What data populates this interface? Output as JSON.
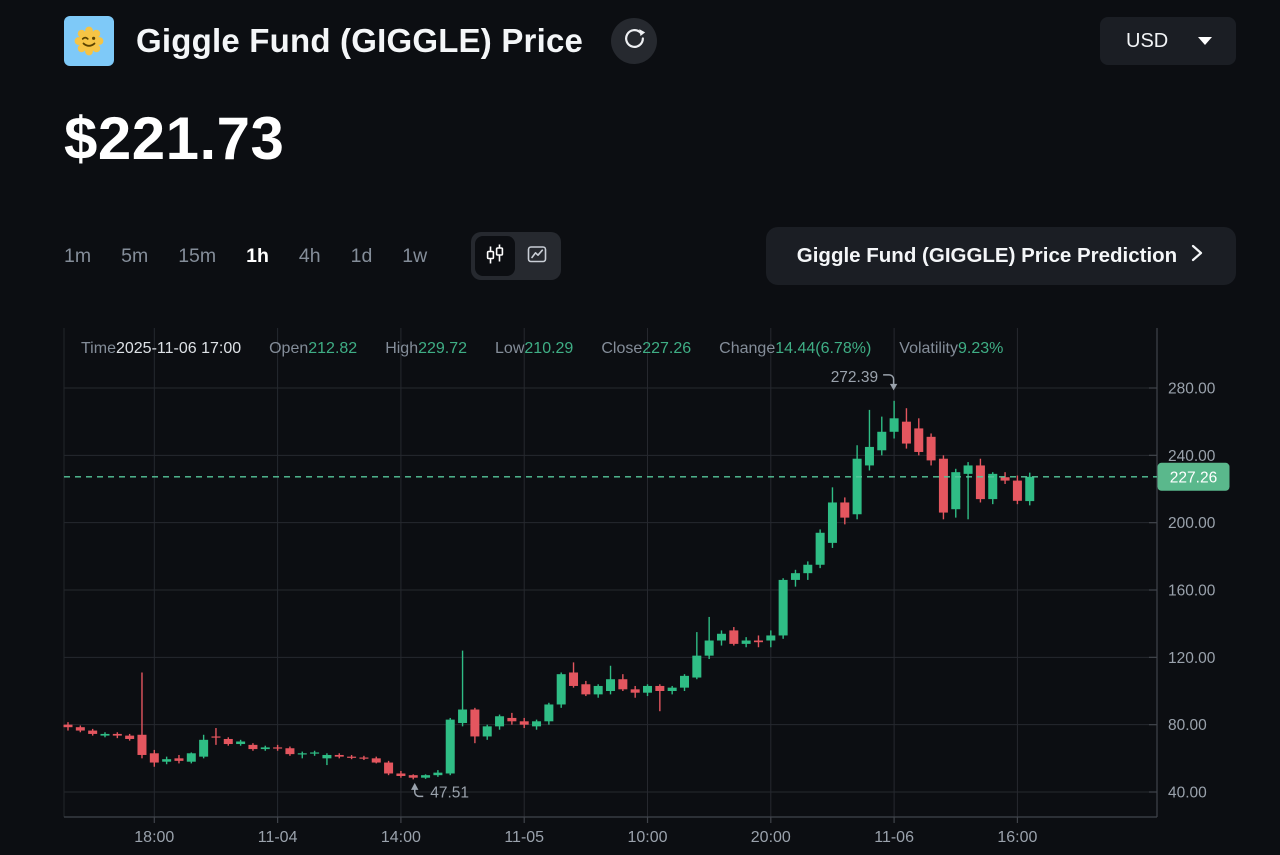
{
  "header": {
    "title": "Giggle Fund (GIGGLE) Price",
    "currency_selector": {
      "value": "USD"
    }
  },
  "icons": {
    "logo": "giggle-smiley-logo-icon",
    "refresh": "refresh-icon",
    "caret": "caret-down-icon",
    "candlestick": "candlestick-icon",
    "line_chart": "line-chart-icon",
    "chevron": "chevron-right-icon"
  },
  "price_display": "$221.73",
  "timeframes": {
    "options": [
      "1m",
      "5m",
      "15m",
      "1h",
      "4h",
      "1d",
      "1w"
    ],
    "active": "1h"
  },
  "chart_type_toggle": {
    "options": [
      "candlestick",
      "line"
    ],
    "active": "candlestick"
  },
  "prediction_button": {
    "label": "Giggle Fund (GIGGLE) Price Prediction"
  },
  "ohlc": {
    "time": {
      "label": "Time",
      "value": "2025-11-06 17:00"
    },
    "open": {
      "label": "Open",
      "value": "212.82"
    },
    "high": {
      "label": "High",
      "value": "229.72"
    },
    "low": {
      "label": "Low",
      "value": "210.29"
    },
    "close": {
      "label": "Close",
      "value": "227.26"
    },
    "change": {
      "label": "Change",
      "value": "14.44(6.78%)"
    },
    "volatility": {
      "label": "Volatility",
      "value": "9.23%"
    }
  },
  "chart_data": {
    "type": "candlestick",
    "interval": "1h",
    "unit": "USD",
    "title": "Giggle Fund (GIGGLE) 1h candles, 2025-11-03 11:00 to 2025-11-06 17:00",
    "ylim": [
      25.15,
      315.65
    ],
    "y_ticks": [
      280,
      240,
      200,
      160,
      120,
      80,
      40
    ],
    "y_tick_labels": [
      "280.00",
      "240.00",
      "200.00",
      "160.00",
      "120.00",
      "80.00",
      "40.00"
    ],
    "x_labels": [
      "18:00",
      "11-04",
      "14:00",
      "11-05",
      "10:00",
      "20:00",
      "11-06",
      "16:00"
    ],
    "x_tick_indices": [
      7,
      17,
      27,
      37,
      47,
      57,
      67,
      77
    ],
    "grid": true,
    "candles": [
      [
        80,
        81.5,
        76.5,
        78.5
      ],
      [
        78.5,
        79.5,
        75.5,
        76.5
      ],
      [
        76.5,
        77.5,
        73.5,
        74.5
      ],
      [
        73.5,
        75.5,
        72.5,
        74.5
      ],
      [
        74.5,
        75.5,
        72,
        73.5
      ],
      [
        73.5,
        74.5,
        70.5,
        71.5
      ],
      [
        74,
        111,
        60,
        62
      ],
      [
        63,
        65,
        55,
        57.5
      ],
      [
        58,
        61,
        56.5,
        59.5
      ],
      [
        60,
        62,
        57,
        58.5
      ],
      [
        58,
        63.5,
        57,
        63
      ],
      [
        61,
        74,
        60,
        71
      ],
      [
        73,
        78,
        68,
        72.5
      ],
      [
        71.5,
        72.5,
        67.5,
        68.5
      ],
      [
        68.5,
        71,
        67.5,
        70
      ],
      [
        68,
        69,
        64.5,
        65.5
      ],
      [
        65.5,
        67.5,
        64.5,
        66.5
      ],
      [
        66.5,
        68,
        64.5,
        66
      ],
      [
        66,
        67,
        61.5,
        62.5
      ],
      [
        62.5,
        64,
        60,
        63
      ],
      [
        63,
        64.5,
        61.5,
        63.5
      ],
      [
        60,
        63,
        56,
        62
      ],
      [
        62,
        63,
        60,
        61
      ],
      [
        61,
        62,
        59.5,
        60.5
      ],
      [
        60.5,
        61.5,
        59,
        60
      ],
      [
        60,
        61,
        57,
        57.5
      ],
      [
        57.5,
        58.5,
        50,
        51
      ],
      [
        51,
        52.5,
        48.5,
        49.5
      ],
      [
        50,
        50.5,
        47.51,
        48.5
      ],
      [
        48.5,
        50.5,
        47.8,
        50
      ],
      [
        50,
        53,
        49,
        51.5
      ],
      [
        51,
        84,
        50,
        83
      ],
      [
        81,
        124,
        79,
        89
      ],
      [
        89,
        90,
        69,
        73
      ],
      [
        73,
        80,
        71,
        79
      ],
      [
        79,
        86,
        77,
        85
      ],
      [
        84,
        87,
        80,
        82
      ],
      [
        82,
        84,
        78,
        80
      ],
      [
        79,
        83,
        77,
        82
      ],
      [
        82,
        93,
        80,
        92
      ],
      [
        92,
        111,
        90,
        110
      ],
      [
        111,
        117,
        102,
        103
      ],
      [
        104,
        106,
        97,
        98
      ],
      [
        98,
        104,
        96,
        103
      ],
      [
        100,
        115,
        98,
        107
      ],
      [
        107,
        110,
        100,
        101
      ],
      [
        101,
        103,
        96,
        99
      ],
      [
        99,
        104,
        97,
        103
      ],
      [
        103,
        104,
        88,
        100
      ],
      [
        100,
        103,
        98,
        102
      ],
      [
        102,
        110,
        100,
        109
      ],
      [
        108,
        135,
        107,
        121
      ],
      [
        121,
        144,
        119,
        130
      ],
      [
        130,
        136,
        127,
        134
      ],
      [
        136,
        138,
        127,
        128
      ],
      [
        128,
        132,
        126,
        130
      ],
      [
        130,
        133,
        126,
        129
      ],
      [
        130,
        136,
        126,
        133
      ],
      [
        133,
        167,
        131,
        166
      ],
      [
        166,
        172,
        162,
        170
      ],
      [
        170,
        177,
        166,
        175
      ],
      [
        175,
        196,
        173,
        194
      ],
      [
        188,
        221,
        185,
        212
      ],
      [
        212,
        215,
        199,
        203
      ],
      [
        205,
        246,
        202,
        238
      ],
      [
        234,
        267,
        231,
        245
      ],
      [
        243,
        263,
        240,
        254
      ],
      [
        254,
        272.39,
        250,
        262
      ],
      [
        260,
        268,
        244,
        247
      ],
      [
        256,
        262,
        240,
        242
      ],
      [
        251,
        253,
        234,
        237
      ],
      [
        238,
        240,
        202,
        206
      ],
      [
        208,
        232,
        203,
        230
      ],
      [
        229,
        236,
        202,
        234
      ],
      [
        234,
        238,
        212,
        214
      ],
      [
        214,
        230,
        211,
        229
      ],
      [
        227,
        230,
        223,
        225
      ],
      [
        225,
        228,
        211,
        213
      ],
      [
        212.82,
        229.72,
        210.29,
        227.26
      ]
    ],
    "last_price": {
      "value": 227.26,
      "label": "227.26"
    },
    "annotations": {
      "high": {
        "index": 67,
        "value": 272.39,
        "label": "272.39"
      },
      "low": {
        "index": 28,
        "value": 47.51,
        "label": "47.51"
      }
    },
    "colors": {
      "up": "#2fbd85",
      "down": "#e4565f",
      "last_price_line": "#56c69a",
      "last_price_badge": "#5ab88c",
      "grid": "#26292f",
      "axis": "#40444b",
      "axis_text": "#9aa2ac",
      "annotation_text": "#9aa2ac"
    },
    "legend": false
  }
}
